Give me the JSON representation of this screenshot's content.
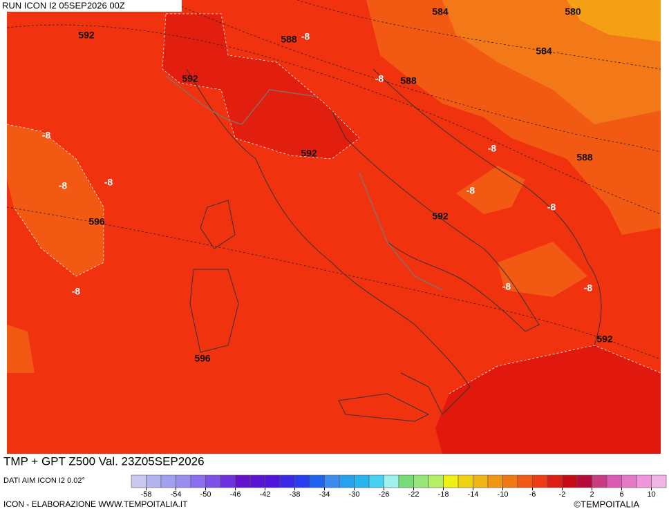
{
  "header": {
    "run": "RUN ICON I2 05SEP2026 00Z"
  },
  "map": {
    "labels": [
      592,
      584,
      580,
      588,
      -8,
      592,
      584,
      -8,
      588,
      -8,
      592,
      -8,
      588,
      -8,
      -8,
      -8,
      -8,
      596,
      592,
      -8,
      -8,
      -8,
      592,
      596
    ]
  },
  "footer": {
    "title": "TMP + GPT Z500 Val. 23Z05SEP2026",
    "source": "DATI AIM ICON I2 0.02°",
    "credit": "ICON - ELABORAZIONE WWW.TEMPOITALIA.IT",
    "logo": "©TEMPOITALIA"
  },
  "colorbar": {
    "colors": [
      "#c8c8f0",
      "#b4b4f0",
      "#a0a0f0",
      "#9b8cf0",
      "#8c6ef0",
      "#7d50e6",
      "#6e32dc",
      "#6414c8",
      "#5a14d2",
      "#5014dc",
      "#3c28e6",
      "#283cf0",
      "#1e64f0",
      "#3c8cf0",
      "#28a0f0",
      "#28b4f0",
      "#46d2f0",
      "#a0f0f0",
      "#78dc78",
      "#96e678",
      "#b4f064",
      "#f0f014",
      "#f0d214",
      "#f0b414",
      "#f09614",
      "#f07814",
      "#f05a14",
      "#f03c14",
      "#dc1e14",
      "#c80a14",
      "#b40a3c",
      "#c83c82",
      "#dc5ab4",
      "#e678c8",
      "#f096dc",
      "#f0b4e6"
    ],
    "ticks": [
      -58,
      -54,
      -50,
      -46,
      -42,
      -38,
      -34,
      -30,
      -26,
      -22,
      -18,
      -14,
      -10,
      -6,
      -2,
      2,
      6,
      10
    ]
  }
}
